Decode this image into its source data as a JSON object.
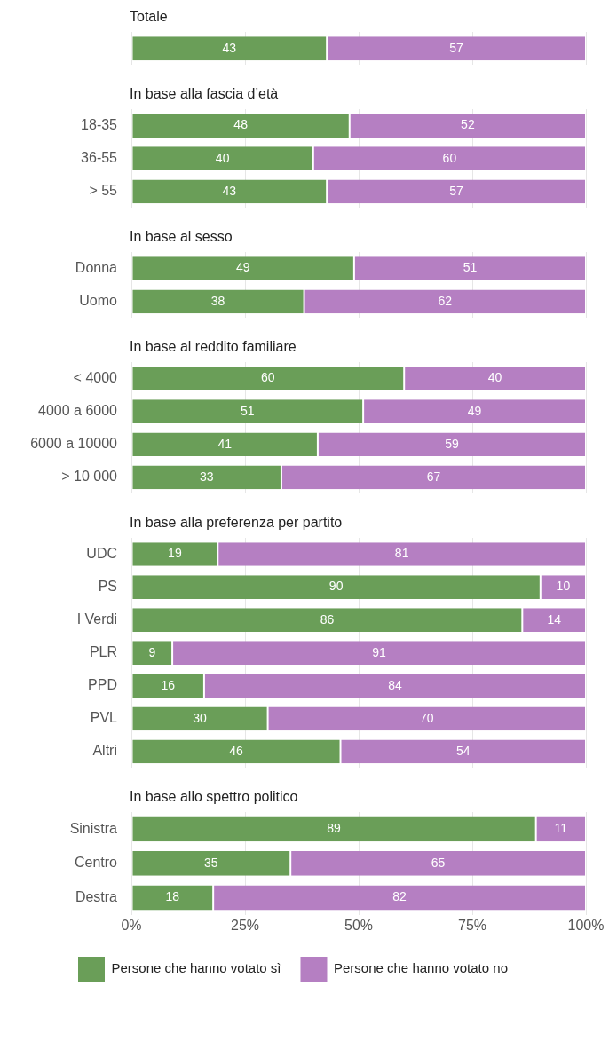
{
  "chart_data": [
    {
      "type": "bar",
      "title": "Totale",
      "categories": [
        null
      ],
      "orientation": "horizontal",
      "stacked": true,
      "data_labels": true,
      "grid": "x",
      "tick_labels": "y",
      "xlim": [
        0,
        100
      ],
      "xticks": [
        {
          "value": 0,
          "label": null
        },
        {
          "value": 25,
          "label": null
        },
        {
          "value": 50,
          "label": null
        },
        {
          "value": 75,
          "label": null
        },
        {
          "value": 100,
          "label": null
        }
      ],
      "series": [
        {
          "color": "#6a9e58",
          "values": [
            43
          ]
        },
        {
          "color": "#b57fc2",
          "values": [
            57
          ]
        }
      ]
    },
    {
      "type": "bar",
      "title": "In base alla fascia d’età",
      "categories": [
        "18-35",
        "36-55",
        "> 55"
      ],
      "orientation": "horizontal",
      "stacked": true,
      "data_labels": true,
      "grid": "x",
      "tick_labels": "y",
      "xlim": [
        0,
        100
      ],
      "xticks": [
        {
          "value": 0,
          "label": null
        },
        {
          "value": 25,
          "label": null
        },
        {
          "value": 50,
          "label": null
        },
        {
          "value": 75,
          "label": null
        },
        {
          "value": 100,
          "label": null
        }
      ],
      "series": [
        {
          "color": "#6a9e58",
          "values": [
            48,
            40,
            43
          ]
        },
        {
          "color": "#b57fc2",
          "values": [
            52,
            60,
            57
          ]
        }
      ]
    },
    {
      "type": "bar",
      "title": "In base al sesso",
      "categories": [
        "Donna",
        "Uomo"
      ],
      "orientation": "horizontal",
      "stacked": true,
      "data_labels": true,
      "grid": "x",
      "tick_labels": "y",
      "xlim": [
        0,
        100
      ],
      "xticks": [
        {
          "value": 0,
          "label": null
        },
        {
          "value": 25,
          "label": null
        },
        {
          "value": 50,
          "label": null
        },
        {
          "value": 75,
          "label": null
        },
        {
          "value": 100,
          "label": null
        }
      ],
      "series": [
        {
          "color": "#6a9e58",
          "values": [
            49,
            38
          ]
        },
        {
          "color": "#b57fc2",
          "values": [
            51,
            62
          ]
        }
      ]
    },
    {
      "type": "bar",
      "title": "In base al reddito familiare",
      "categories": [
        "< 4000",
        "4000 a 6000",
        "6000 a 10000",
        "> 10 000"
      ],
      "orientation": "horizontal",
      "stacked": true,
      "data_labels": true,
      "grid": "x",
      "tick_labels": "y",
      "xlim": [
        0,
        100
      ],
      "xticks": [
        {
          "value": 0,
          "label": null
        },
        {
          "value": 25,
          "label": null
        },
        {
          "value": 50,
          "label": null
        },
        {
          "value": 75,
          "label": null
        },
        {
          "value": 100,
          "label": null
        }
      ],
      "series": [
        {
          "color": "#6a9e58",
          "values": [
            60,
            51,
            41,
            33
          ]
        },
        {
          "color": "#b57fc2",
          "values": [
            40,
            49,
            59,
            67
          ]
        }
      ]
    },
    {
      "type": "bar",
      "title": "In base alla preferenza per partito",
      "categories": [
        "UDC",
        "PS",
        "I Verdi",
        "PLR",
        "PPD",
        "PVL",
        "Altri"
      ],
      "orientation": "horizontal",
      "stacked": true,
      "data_labels": true,
      "grid": "x",
      "tick_labels": "y",
      "xlim": [
        0,
        100
      ],
      "xticks": [
        {
          "value": 0,
          "label": null
        },
        {
          "value": 25,
          "label": null
        },
        {
          "value": 50,
          "label": null
        },
        {
          "value": 75,
          "label": null
        },
        {
          "value": 100,
          "label": null
        }
      ],
      "series": [
        {
          "color": "#6a9e58",
          "values": [
            19,
            90,
            86,
            9,
            16,
            30,
            46
          ]
        },
        {
          "color": "#b57fc2",
          "values": [
            81,
            10,
            14,
            91,
            84,
            70,
            54
          ]
        }
      ]
    },
    {
      "type": "bar",
      "title": "In base allo spettro politico",
      "categories": [
        "Sinistra",
        "Centro",
        "Destra"
      ],
      "orientation": "horizontal",
      "stacked": true,
      "data_labels": true,
      "grid": "x",
      "legend": "bottom",
      "xlim": [
        0,
        100
      ],
      "xticks": [
        {
          "value": 0,
          "label": "0%"
        },
        {
          "value": 25,
          "label": "25%"
        },
        {
          "value": 50,
          "label": "50%"
        },
        {
          "value": 75,
          "label": "75%"
        },
        {
          "value": 100,
          "label": "100%"
        }
      ],
      "series": [
        {
          "name": "Persone che hanno votato sì",
          "color": "#6a9e58",
          "values": [
            89,
            35,
            18
          ]
        },
        {
          "name": "Persone che hanno votato no",
          "color": "#b57fc2",
          "values": [
            11,
            65,
            82
          ]
        }
      ]
    }
  ]
}
